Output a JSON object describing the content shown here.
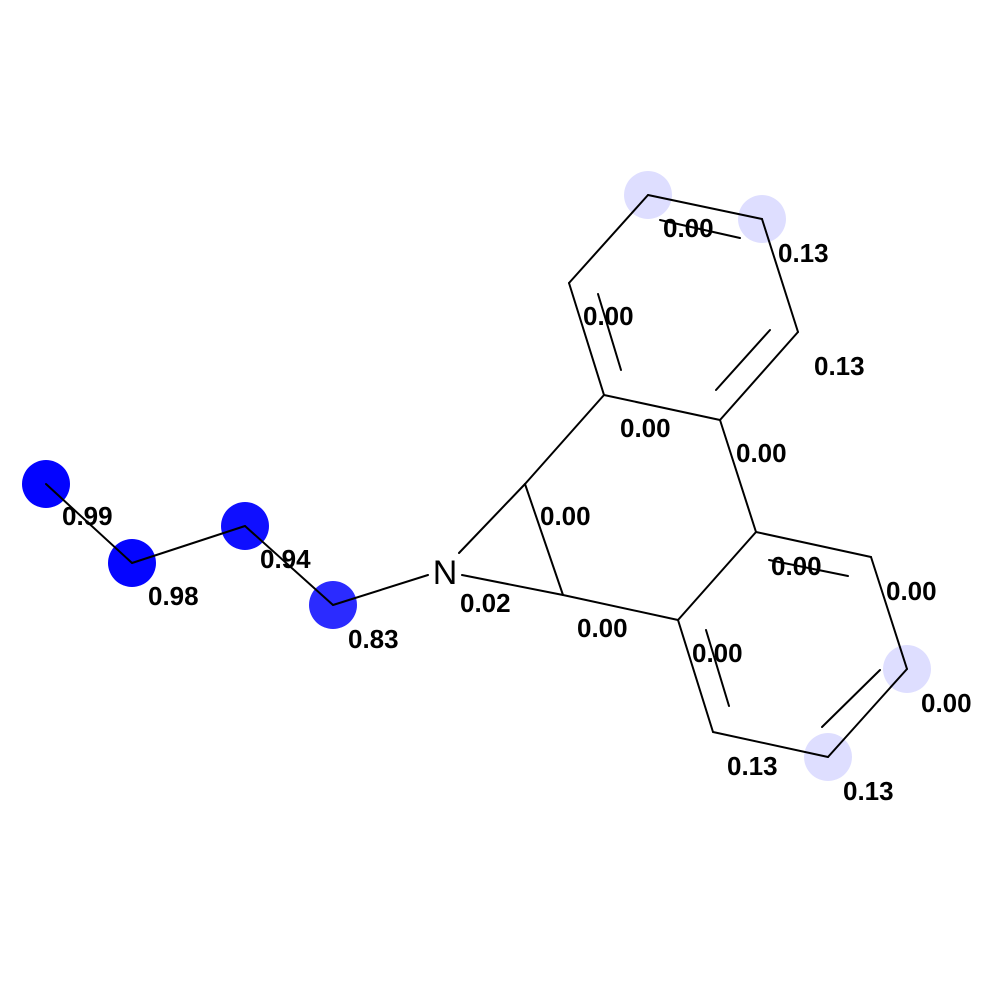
{
  "molecule": {
    "atom_label": "N",
    "highlight_color": "#0000ff",
    "atoms": [
      {
        "id": "c1",
        "score": "0.99",
        "value": 0.99
      },
      {
        "id": "c2",
        "score": "0.98",
        "value": 0.98
      },
      {
        "id": "c3",
        "score": "0.94",
        "value": 0.94
      },
      {
        "id": "c4",
        "score": "0.83",
        "value": 0.83
      },
      {
        "id": "n",
        "score": "0.02",
        "value": 0.02
      },
      {
        "id": "a1",
        "score": "0.00",
        "value": 0.0
      },
      {
        "id": "a2",
        "score": "0.00",
        "value": 0.0
      },
      {
        "id": "r1",
        "score": "0.00",
        "value": 0.0
      },
      {
        "id": "r2",
        "score": "0.00",
        "value": 0.0
      },
      {
        "id": "r3",
        "score": "0.00",
        "value": 0.0
      },
      {
        "id": "r4",
        "score": "0.13",
        "value": 0.13
      },
      {
        "id": "r5",
        "score": "0.13",
        "value": 0.13
      },
      {
        "id": "r6",
        "score": "0.00",
        "value": 0.0
      },
      {
        "id": "s1",
        "score": "0.00",
        "value": 0.0
      },
      {
        "id": "s2",
        "score": "0.00",
        "value": 0.0
      },
      {
        "id": "s3",
        "score": "0.00",
        "value": 0.0
      },
      {
        "id": "s4",
        "score": "0.13",
        "value": 0.13
      },
      {
        "id": "s5",
        "score": "0.13",
        "value": 0.13
      },
      {
        "id": "s6",
        "score": "0.00",
        "value": 0.0
      }
    ]
  }
}
